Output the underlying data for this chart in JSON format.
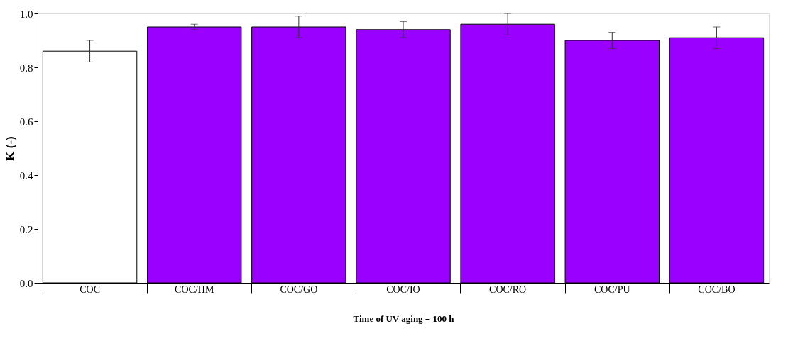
{
  "chart_data": {
    "type": "bar",
    "xlabel": "Time of UV aging = 100 h",
    "ylabel": "K (-)",
    "categories": [
      "COC",
      "COC/HM",
      "COC/GO",
      "COC/IO",
      "COC/RO",
      "COC/PU",
      "COC/BO"
    ],
    "values": [
      0.86,
      0.95,
      0.95,
      0.94,
      0.96,
      0.9,
      0.91
    ],
    "errors": [
      0.04,
      0.01,
      0.04,
      0.03,
      0.04,
      0.03,
      0.04
    ],
    "colors": [
      "#ffffff",
      "#9900ff",
      "#9900ff",
      "#9900ff",
      "#9900ff",
      "#9900ff",
      "#9900ff"
    ],
    "ylim": [
      0,
      1.0
    ],
    "yticks": [
      {
        "value": 0,
        "label": "0.0"
      },
      {
        "value": 0.2,
        "label": "0.2"
      },
      {
        "value": 0.4,
        "label": "0.4"
      },
      {
        "value": 0.6,
        "label": "0.6"
      },
      {
        "value": 0.8,
        "label": "0.8"
      },
      {
        "value": 1.0,
        "label": "1.0"
      }
    ],
    "grid": false
  }
}
